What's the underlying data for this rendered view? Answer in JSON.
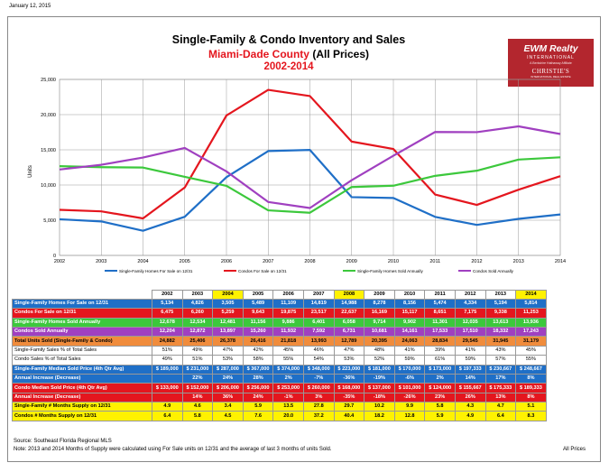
{
  "page_date": "January 12, 2015",
  "titles": {
    "line1": "Single-Family & Condo Inventory and Sales",
    "line2_red": "Miami-Dade County",
    "line2_rest": " (All Prices)",
    "line3": "2002-2014"
  },
  "logo": {
    "brand": "EWM Realty",
    "sub": "INTERNATIONAL",
    "tagline": "A Berkshire Hathaway Affiliate",
    "partner": "CHRISTIE'S",
    "partner_sub": "INTERNATIONAL REAL ESTATE"
  },
  "chart_data": {
    "type": "line",
    "x": [
      2002,
      2003,
      2004,
      2005,
      2006,
      2007,
      2008,
      2009,
      2010,
      2011,
      2012,
      2013,
      2014
    ],
    "ylabel": "Units",
    "ylim": [
      0,
      25000
    ],
    "yticks": [
      "0",
      "5,000",
      "10,000",
      "15,000",
      "20,000",
      "25,000"
    ],
    "grid": true,
    "legend_position": "bottom",
    "series": [
      {
        "name": "Single-Family Homes For Sale on 12/31",
        "color": "#1f6fc7",
        "values": [
          5134,
          4826,
          3505,
          5489,
          11109,
          14819,
          14988,
          8278,
          8156,
          5474,
          4334,
          5194,
          5814
        ]
      },
      {
        "name": "Condos For Sale on 12/31",
        "color": "#e4161e",
        "values": [
          6475,
          6260,
          5259,
          9643,
          19875,
          23517,
          22637,
          16169,
          15117,
          8651,
          7175,
          9338,
          11253
        ]
      },
      {
        "name": "Single-Family Homes Sold Annually",
        "color": "#3cc83c",
        "values": [
          12678,
          12534,
          12481,
          11156,
          9886,
          6401,
          6058,
          9714,
          9902,
          11301,
          12035,
          13613,
          13936
        ]
      },
      {
        "name": "Condos Sold Annually",
        "color": "#a040c0",
        "values": [
          12204,
          12872,
          13897,
          15260,
          11932,
          7592,
          6731,
          10681,
          14161,
          17533,
          17510,
          18332,
          17243
        ]
      }
    ]
  },
  "table": {
    "years": [
      "2002",
      "2003",
      "2004",
      "2005",
      "2006",
      "2007",
      "2008",
      "2009",
      "2010",
      "2011",
      "2012",
      "2013",
      "2014"
    ],
    "rows": [
      {
        "label": "Single-Family Homes For Sale on 12/31",
        "bg": "#1f6fc7",
        "fg": "#ffffff",
        "values": [
          "5,134",
          "4,826",
          "3,505",
          "5,489",
          "11,109",
          "14,819",
          "14,988",
          "8,278",
          "8,156",
          "5,474",
          "4,334",
          "5,194",
          "5,814"
        ]
      },
      {
        "label": "Condos For Sale on 12/31",
        "bg": "#e4161e",
        "fg": "#ffffff",
        "values": [
          "6,475",
          "6,260",
          "5,259",
          "9,643",
          "19,875",
          "23,517",
          "22,637",
          "16,169",
          "15,117",
          "8,651",
          "7,175",
          "9,338",
          "11,253"
        ]
      },
      {
        "label": "Single-Family Homes Sold Annually",
        "bg": "#3cc83c",
        "fg": "#ffffff",
        "values": [
          "12,678",
          "12,534",
          "12,481",
          "11,156",
          "9,886",
          "6,401",
          "6,058",
          "9,714",
          "9,902",
          "11,301",
          "12,035",
          "13,613",
          "13,936"
        ]
      },
      {
        "label": "Condos Sold Annually",
        "bg": "#a040c0",
        "fg": "#ffffff",
        "values": [
          "12,204",
          "12,872",
          "13,897",
          "15,260",
          "11,932",
          "7,592",
          "6,731",
          "10,681",
          "14,161",
          "17,533",
          "17,510",
          "18,332",
          "17,243"
        ]
      },
      {
        "label": "Total Units Sold (Single-Family & Condo)",
        "bg": "#f08c3c",
        "fg": "#000000",
        "values": [
          "24,882",
          "25,406",
          "26,378",
          "26,416",
          "21,818",
          "13,993",
          "12,789",
          "20,395",
          "24,063",
          "28,834",
          "29,545",
          "31,945",
          "31,179"
        ]
      },
      {
        "label": "Single-Family Sales % of Total Sales",
        "bg": "#ffffff",
        "fg": "#000000",
        "values": [
          "51%",
          "49%",
          "47%",
          "42%",
          "45%",
          "46%",
          "47%",
          "48%",
          "41%",
          "39%",
          "41%",
          "43%",
          "45%"
        ]
      },
      {
        "label": "Condo Sales % of Total Sales",
        "bg": "#ffffff",
        "fg": "#000000",
        "values": [
          "49%",
          "51%",
          "53%",
          "58%",
          "55%",
          "54%",
          "53%",
          "52%",
          "59%",
          "61%",
          "59%",
          "57%",
          "55%"
        ]
      },
      {
        "label": "Single-Family Median Sold Price (4th Qtr Avg)",
        "bg": "#1f6fc7",
        "fg": "#ffffff",
        "values": [
          "$ 189,000",
          "$ 231,000",
          "$ 287,000",
          "$ 367,000",
          "$ 374,000",
          "$ 348,000",
          "$ 223,000",
          "$ 181,000",
          "$ 170,000",
          "$ 173,000",
          "$ 197,333",
          "$ 230,667",
          "$ 248,667"
        ]
      },
      {
        "label": "Annual Increase (Decrease)",
        "bg": "#1f6fc7",
        "fg": "#ffffff",
        "values": [
          "",
          "22%",
          "24%",
          "28%",
          "2%",
          "-7%",
          "-36%",
          "-19%",
          "-6%",
          "2%",
          "14%",
          "17%",
          "8%"
        ]
      },
      {
        "label": "Condo Median Sold Price (4th Qtr Avg)",
        "bg": "#e4161e",
        "fg": "#ffffff",
        "values": [
          "$ 133,000",
          "$ 152,000",
          "$ 206,000",
          "$ 256,000",
          "$ 253,000",
          "$ 260,000",
          "$ 168,000",
          "$ 137,000",
          "$ 101,000",
          "$ 124,000",
          "$ 155,667",
          "$ 175,333",
          "$ 189,333"
        ]
      },
      {
        "label": "Annual Increase (Decrease)",
        "bg": "#e4161e",
        "fg": "#ffffff",
        "values": [
          "",
          "14%",
          "36%",
          "24%",
          "-1%",
          "3%",
          "-35%",
          "-18%",
          "-26%",
          "23%",
          "26%",
          "13%",
          "8%"
        ]
      },
      {
        "label": "Single-Family # Months Supply on 12/31",
        "bg": "#fff200",
        "fg": "#000000",
        "values": [
          "4.9",
          "4.6",
          "3.4",
          "5.9",
          "13.5",
          "27.8",
          "29.7",
          "10.2",
          "9.9",
          "5.8",
          "4.3",
          "4.7",
          "5.1"
        ]
      },
      {
        "label": "Condos # Months Supply on 12/31",
        "bg": "#fff200",
        "fg": "#000000",
        "values": [
          "6.4",
          "5.8",
          "4.5",
          "7.6",
          "20.0",
          "37.2",
          "40.4",
          "18.2",
          "12.8",
          "5.9",
          "4.9",
          "6.4",
          "8.3"
        ]
      }
    ]
  },
  "footer": {
    "source": "Source: Southeast Florida Regional MLS",
    "note": "Note: 2013 and 2014 Months of Supply were calculated using For Sale units on 12/31 and the average of last 3 months of units Sold.",
    "right": "All Prices"
  }
}
